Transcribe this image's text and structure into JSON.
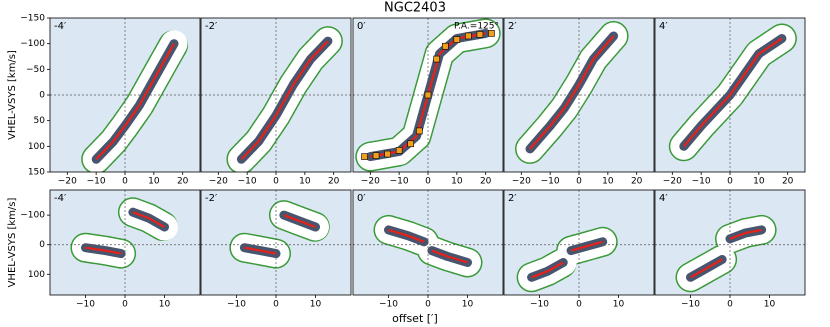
{
  "title": "NGC2403",
  "xlabel": "offset [′]",
  "chart_data": [
    {
      "type": "pv",
      "panel_label": "-4′",
      "ylabel": "VHEL-VSYS [km/s]",
      "xlim": [
        -26,
        26
      ],
      "ylim": [
        150,
        -150
      ],
      "xticks": [
        {
          "value": -20,
          "label": "−20"
        },
        {
          "value": -10,
          "label": "−10"
        },
        0,
        10,
        20
      ],
      "yticks": [
        {
          "value": -150,
          "label": "−150"
        },
        {
          "value": -100,
          "label": "−100"
        },
        {
          "value": -50,
          "label": "−50"
        },
        0,
        50,
        100,
        150
      ],
      "series": [
        {
          "color": "#e8201a",
          "x": [
            -10,
            -4,
            0,
            5,
            10,
            17
          ],
          "values": [
            125,
            90,
            60,
            20,
            -30,
            -100
          ]
        }
      ]
    },
    {
      "type": "pv",
      "panel_label": "-2′",
      "xlim": [
        -26,
        26
      ],
      "ylim": [
        150,
        -150
      ],
      "xticks": [
        {
          "value": -20,
          "label": "−20"
        },
        {
          "value": -10,
          "label": "−10"
        },
        0,
        10,
        20
      ],
      "series": [
        {
          "color": "#e8201a",
          "x": [
            -12,
            -6,
            0,
            6,
            12,
            18
          ],
          "values": [
            125,
            90,
            40,
            -20,
            -70,
            -105
          ]
        }
      ]
    },
    {
      "type": "pv",
      "panel_label": "0′",
      "annotation": "P.A.=125°",
      "xlim": [
        -26,
        26
      ],
      "ylim": [
        150,
        -150
      ],
      "xticks": [
        {
          "value": -20,
          "label": "−20"
        },
        {
          "value": -10,
          "label": "−10"
        },
        0,
        10,
        20
      ],
      "series": [
        {
          "color": "#e8201a",
          "x": [
            -20,
            -10,
            -4,
            0,
            4,
            10,
            20
          ],
          "values": [
            120,
            110,
            80,
            0,
            -80,
            -110,
            -120
          ]
        },
        {
          "color": "#f0a020",
          "marker": "square",
          "x": [
            -22,
            -18,
            -14,
            -10,
            -6,
            -3,
            0,
            3,
            6,
            10,
            14,
            18,
            22
          ],
          "values": [
            120,
            118,
            115,
            108,
            95,
            70,
            0,
            -70,
            -95,
            -108,
            -115,
            -118,
            -120
          ]
        }
      ]
    },
    {
      "type": "pv",
      "panel_label": "2′",
      "xlim": [
        -26,
        26
      ],
      "ylim": [
        150,
        -150
      ],
      "xticks": [
        {
          "value": -20,
          "label": "−20"
        },
        {
          "value": -10,
          "label": "−10"
        },
        0,
        10,
        20
      ],
      "series": [
        {
          "color": "#e8201a",
          "x": [
            -17,
            -10,
            -5,
            0,
            5,
            12
          ],
          "values": [
            105,
            60,
            25,
            -20,
            -70,
            -115
          ]
        }
      ]
    },
    {
      "type": "pv",
      "panel_label": "4′",
      "xlim": [
        -26,
        26
      ],
      "ylim": [
        150,
        -150
      ],
      "xticks": [
        {
          "value": -20,
          "label": "−20"
        },
        {
          "value": -10,
          "label": "−10"
        },
        0,
        10,
        20
      ],
      "series": [
        {
          "color": "#e8201a",
          "x": [
            -16,
            -10,
            -5,
            0,
            5,
            10,
            18
          ],
          "values": [
            100,
            60,
            30,
            0,
            -40,
            -80,
            -110
          ]
        }
      ]
    },
    {
      "type": "pv",
      "panel_label": "-4′",
      "ylabel": "VHEL-VSYS [km/s]",
      "xlim": [
        -19,
        19
      ],
      "ylim": [
        170,
        -185
      ],
      "xticks": [
        {
          "value": -10,
          "label": "−10"
        },
        0,
        10
      ],
      "yticks": [
        {
          "value": -100,
          "label": "−100"
        },
        0,
        100
      ],
      "series": [
        {
          "color": "#e8201a",
          "x": [
            -10,
            -5,
            -1,
            null,
            2,
            6,
            10
          ],
          "values": [
            10,
            20,
            30,
            null,
            -110,
            -90,
            -60
          ]
        }
      ]
    },
    {
      "type": "pv",
      "panel_label": "-2′",
      "xlim": [
        -19,
        19
      ],
      "ylim": [
        170,
        -185
      ],
      "xticks": [
        {
          "value": -10,
          "label": "−10"
        },
        0,
        10
      ],
      "series": [
        {
          "color": "#e8201a",
          "x": [
            -8,
            -4,
            0,
            null,
            2,
            6,
            10
          ],
          "values": [
            10,
            20,
            30,
            null,
            -100,
            -80,
            -60
          ]
        }
      ]
    },
    {
      "type": "pv",
      "panel_label": "0′",
      "xlim": [
        -19,
        19
      ],
      "ylim": [
        170,
        -185
      ],
      "xticks": [
        {
          "value": -10,
          "label": "−10"
        },
        0,
        10
      ],
      "series": [
        {
          "color": "#e8201a",
          "x": [
            -10,
            -5,
            -1,
            null,
            1,
            5,
            10
          ],
          "values": [
            -50,
            -30,
            -10,
            null,
            20,
            40,
            60
          ]
        }
      ]
    },
    {
      "type": "pv",
      "panel_label": "2′",
      "xlim": [
        -19,
        19
      ],
      "ylim": [
        170,
        -185
      ],
      "xticks": [
        {
          "value": -10,
          "label": "−10"
        },
        0,
        10
      ],
      "series": [
        {
          "color": "#e8201a",
          "x": [
            -12,
            -8,
            -4,
            null,
            -2,
            2,
            6
          ],
          "values": [
            110,
            90,
            60,
            null,
            20,
            5,
            -10
          ]
        }
      ]
    },
    {
      "type": "pv",
      "panel_label": "4′",
      "xlim": [
        -19,
        19
      ],
      "ylim": [
        170,
        -185
      ],
      "xticks": [
        {
          "value": -10,
          "label": "−10"
        },
        0,
        10
      ],
      "series": [
        {
          "color": "#e8201a",
          "x": [
            -10,
            -6,
            -2,
            null,
            0,
            4,
            8
          ],
          "values": [
            110,
            80,
            50,
            null,
            -20,
            -40,
            -50
          ]
        }
      ]
    }
  ]
}
